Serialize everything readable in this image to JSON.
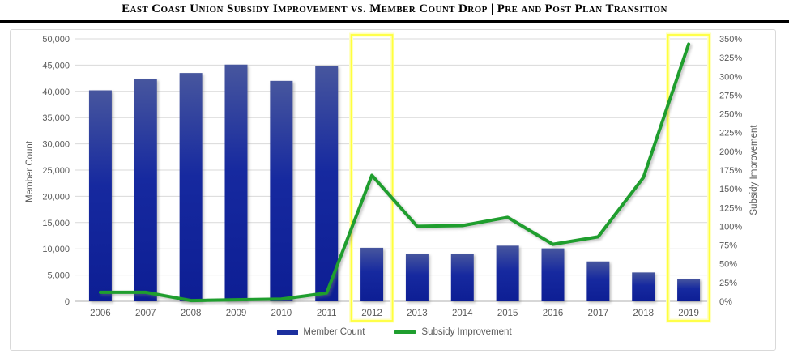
{
  "title": "East Coast Union Subsidy Improvement vs. Member Count Drop | Pre and Post Plan Transition",
  "chart_data": {
    "type": "bar+line combo",
    "categories": [
      "2006",
      "2007",
      "2008",
      "2009",
      "2010",
      "2011",
      "2012",
      "2013",
      "2014",
      "2015",
      "2016",
      "2017",
      "2018",
      "2019"
    ],
    "series": [
      {
        "name": "Member Count",
        "type": "bar",
        "axis": "left",
        "color": "#16299F",
        "values": [
          40200,
          42400,
          43500,
          45100,
          42000,
          44900,
          10200,
          9100,
          9100,
          10600,
          10100,
          7600,
          5500,
          4300
        ]
      },
      {
        "name": "Subsidy Improvement",
        "type": "line",
        "axis": "right",
        "color": "#1F9E2E",
        "values": [
          12,
          12,
          1,
          2,
          3,
          11,
          168,
          100,
          101,
          112,
          76,
          86,
          165,
          343
        ]
      }
    ],
    "left_axis": {
      "label": "Member Count",
      "min": 0,
      "max": 50000,
      "step": 5000,
      "ticks_bottom_to_top": [
        "0",
        "5,000",
        "10,000",
        "15,000",
        "20,000",
        "25,000",
        "30,000",
        "35,000",
        "40,000",
        "45,000",
        "50,000"
      ]
    },
    "right_axis": {
      "label": "Subsidy Improvement",
      "min": 0,
      "max": 350,
      "step": 25,
      "ticks_bottom_to_top": [
        "0%",
        "25%",
        "50%",
        "75%",
        "100%",
        "125%",
        "150%",
        "175%",
        "200%",
        "225%",
        "250%",
        "275%",
        "300%",
        "325%",
        "350%"
      ]
    },
    "highlighted_categories": [
      "2012",
      "2019"
    ],
    "highlight_color": "#FFFF3D",
    "grid": true,
    "legend_position": "bottom"
  },
  "legend": {
    "items": [
      {
        "label": "Member Count",
        "swatch": "bar",
        "color": "#1C2F9E"
      },
      {
        "label": "Subsidy Improvement",
        "swatch": "line",
        "color": "#1F9E2E"
      }
    ]
  }
}
